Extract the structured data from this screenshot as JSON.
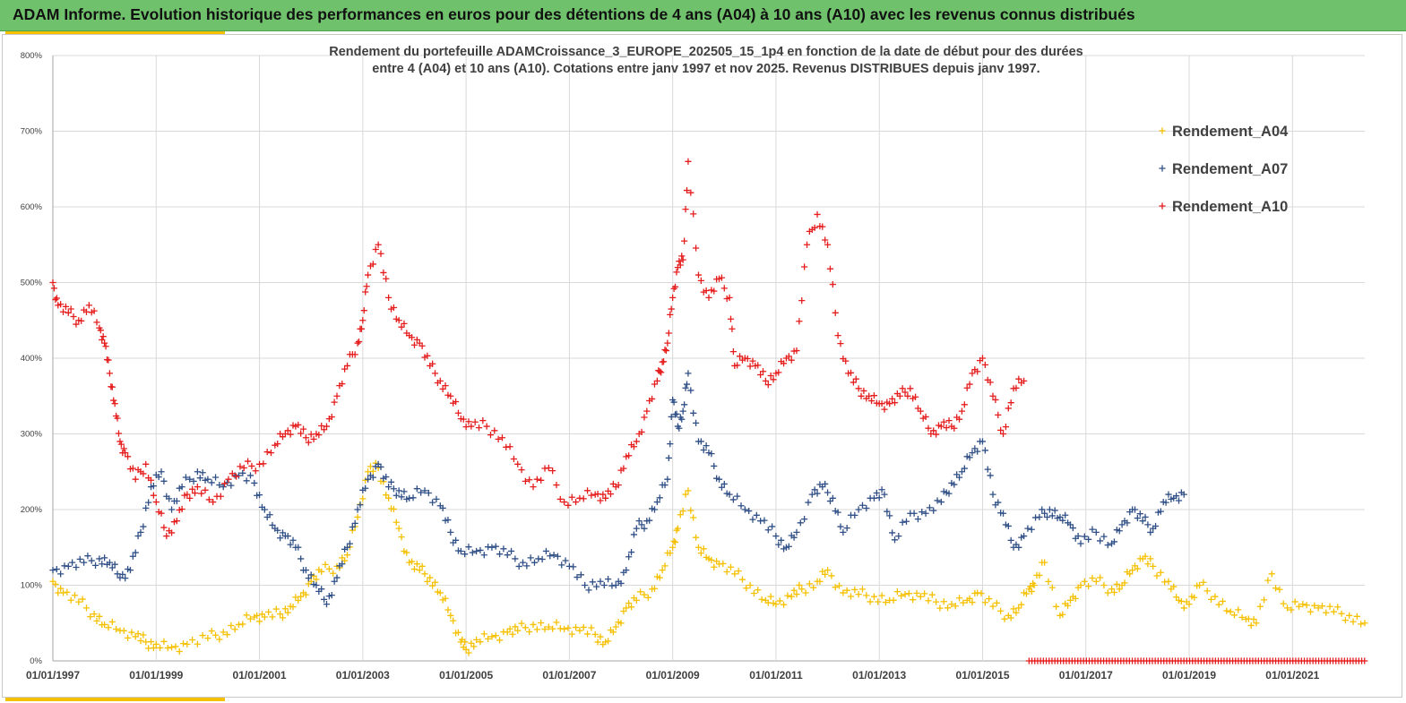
{
  "header": {
    "title": "ADAM Informe. Evolution historique des performances en euros pour des détentions de 4 ans (A04) à 10 ans (A10) avec les revenus connus distribués"
  },
  "colors": {
    "banner": "#6fc26b",
    "accent": "#f5c000",
    "a04": "#f5c000",
    "a07": "#2f4f86",
    "a10": "#e51d1d",
    "grid": "#d9d9d9"
  },
  "chart_data": {
    "type": "scatter",
    "title_lines": [
      "Rendement du portefeuille ADAMCroissance_3_EUROPE_202505_15_1p4  en fonction de la date de début pour des durées",
      "entre 4 (A04) et 10 ans (A10). Cotations entre janv 1997 et nov 2025. Revenus DISTRIBUES depuis janv 1997."
    ],
    "xlabel": "",
    "ylabel": "",
    "xlim": [
      1997.0,
      2022.4
    ],
    "ylim": [
      0,
      800
    ],
    "x_ticks": [
      1997,
      1999,
      2001,
      2003,
      2005,
      2007,
      2009,
      2011,
      2013,
      2015,
      2017,
      2019,
      2021
    ],
    "x_tick_labels": [
      "01/01/1997",
      "01/01/1999",
      "01/01/2001",
      "01/01/2003",
      "01/01/2005",
      "01/01/2007",
      "01/01/2009",
      "01/01/2011",
      "01/01/2013",
      "01/01/2015",
      "01/01/2017",
      "01/01/2019",
      "01/01/2021"
    ],
    "y_ticks": [
      0,
      100,
      200,
      300,
      400,
      500,
      600,
      700,
      800
    ],
    "y_tick_labels": [
      "0%",
      "100%",
      "200%",
      "300%",
      "400%",
      "500%",
      "600%",
      "700%",
      "800%"
    ],
    "legend_position": "top-right",
    "series": [
      {
        "name": "Rendement_A04",
        "color": "#f5c000",
        "x": [
          1997.0,
          1997.2,
          1997.5,
          1997.8,
          1998.0,
          1998.3,
          1998.6,
          1998.8,
          1999.0,
          1999.3,
          1999.6,
          2000.0,
          2000.3,
          2000.6,
          2000.9,
          2001.1,
          2001.4,
          2001.6,
          2001.8,
          2002.0,
          2002.2,
          2002.5,
          2002.7,
          2002.9,
          2003.1,
          2003.3,
          2003.5,
          2003.7,
          2003.9,
          2004.1,
          2004.3,
          2004.5,
          2004.7,
          2004.9,
          2005.0,
          2005.2,
          2005.5,
          2005.8,
          2006.0,
          2006.3,
          2006.6,
          2006.9,
          2007.2,
          2007.5,
          2007.7,
          2007.9,
          2008.1,
          2008.3,
          2008.6,
          2008.8,
          2009.0,
          2009.1,
          2009.3,
          2009.5,
          2009.7,
          2009.9,
          2010.2,
          2010.5,
          2010.8,
          2011.0,
          2011.3,
          2011.5,
          2011.8,
          2012.0,
          2012.3,
          2012.6,
          2012.9,
          2013.2,
          2013.5,
          2013.8,
          2014.1,
          2014.4,
          2014.7,
          2014.9,
          2015.2,
          2015.5,
          2015.7,
          2015.9,
          2016.0,
          2016.2,
          2016.5,
          2016.7,
          2016.9,
          2017.2,
          2017.5,
          2017.7,
          2017.9,
          2018.1,
          2018.3,
          2018.6,
          2018.8,
          2019.0,
          2019.2,
          2019.5,
          2019.8,
          2020.1,
          2020.3,
          2020.6,
          2020.9,
          2021.2,
          2021.5,
          2021.8,
          2022.1,
          2022.4
        ],
        "values": [
          105,
          90,
          78,
          62,
          48,
          40,
          32,
          25,
          22,
          18,
          22,
          30,
          38,
          48,
          58,
          58,
          62,
          72,
          85,
          105,
          118,
          125,
          140,
          190,
          250,
          255,
          215,
          175,
          130,
          120,
          110,
          90,
          60,
          25,
          15,
          28,
          32,
          38,
          40,
          48,
          45,
          42,
          40,
          35,
          25,
          45,
          70,
          80,
          95,
          120,
          150,
          175,
          225,
          150,
          135,
          128,
          115,
          100,
          80,
          75,
          85,
          95,
          105,
          120,
          90,
          88,
          85,
          80,
          88,
          85,
          78,
          75,
          80,
          90,
          72,
          60,
          70,
          95,
          100,
          130,
          60,
          80,
          100,
          105,
          95,
          100,
          120,
          135,
          125,
          105,
          80,
          75,
          100,
          85,
          65,
          55,
          50,
          115,
          70,
          75,
          70,
          65,
          60,
          50
        ]
      },
      {
        "name": "Rendement_A07",
        "color": "#2f4f86",
        "x": [
          1997.0,
          1997.3,
          1997.6,
          1997.9,
          1998.1,
          1998.3,
          1998.5,
          1998.7,
          1998.9,
          1999.1,
          1999.3,
          1999.5,
          1999.8,
          2000.0,
          2000.3,
          2000.6,
          2000.9,
          2001.1,
          2001.3,
          2001.5,
          2001.7,
          2001.9,
          2002.1,
          2002.3,
          2002.5,
          2002.7,
          2002.9,
          2003.1,
          2003.3,
          2003.5,
          2003.7,
          2003.9,
          2004.2,
          2004.5,
          2004.7,
          2004.9,
          2005.2,
          2005.5,
          2005.8,
          2006.1,
          2006.4,
          2006.7,
          2007.0,
          2007.3,
          2007.6,
          2007.9,
          2008.1,
          2008.3,
          2008.5,
          2008.7,
          2008.9,
          2009.0,
          2009.1,
          2009.2,
          2009.3,
          2009.5,
          2009.7,
          2009.9,
          2010.1,
          2010.4,
          2010.7,
          2011.0,
          2011.2,
          2011.4,
          2011.7,
          2011.9,
          2012.1,
          2012.3,
          2012.6,
          2012.9,
          2013.1,
          2013.3,
          2013.6,
          2013.9,
          2014.2,
          2014.4,
          2014.6,
          2014.8,
          2015.0,
          2015.2,
          2015.4,
          2015.6,
          2015.8,
          2016.1,
          2016.3,
          2016.5,
          2016.7,
          2016.9,
          2017.2,
          2017.5,
          2017.7,
          2017.9,
          2018.1,
          2018.3,
          2018.5,
          2018.7,
          2018.9
        ],
        "values": [
          120,
          125,
          130,
          135,
          130,
          110,
          120,
          170,
          230,
          250,
          200,
          230,
          250,
          240,
          230,
          245,
          235,
          200,
          175,
          165,
          150,
          120,
          100,
          75,
          110,
          150,
          200,
          240,
          260,
          230,
          225,
          215,
          225,
          205,
          170,
          145,
          145,
          150,
          140,
          130,
          135,
          140,
          125,
          100,
          105,
          100,
          120,
          175,
          185,
          210,
          240,
          345,
          310,
          330,
          380,
          290,
          275,
          240,
          220,
          200,
          185,
          165,
          150,
          170,
          220,
          230,
          215,
          170,
          200,
          215,
          220,
          160,
          195,
          195,
          210,
          235,
          250,
          275,
          290,
          220,
          195,
          150,
          165,
          190,
          200,
          190,
          180,
          155,
          170,
          155,
          180,
          200,
          185,
          175,
          210,
          215,
          220
        ]
      },
      {
        "name": "Rendement_A10",
        "color": "#e51d1d",
        "x": [
          1997.0,
          1997.1,
          1997.3,
          1997.5,
          1997.7,
          1997.9,
          1998.0,
          1998.1,
          1998.2,
          1998.3,
          1998.4,
          1998.6,
          1998.8,
          1999.0,
          1999.2,
          1999.4,
          1999.6,
          1999.8,
          2000.1,
          2000.4,
          2000.7,
          2001.0,
          2001.3,
          2001.5,
          2001.7,
          2001.9,
          2002.1,
          2002.3,
          2002.5,
          2002.7,
          2002.9,
          2003.0,
          2003.1,
          2003.3,
          2003.5,
          2003.7,
          2003.9,
          2004.1,
          2004.3,
          2004.5,
          2004.7,
          2004.9,
          2005.1,
          2005.4,
          2005.7,
          2006.0,
          2006.3,
          2006.6,
          2006.9,
          2007.2,
          2007.5,
          2007.7,
          2007.9,
          2008.1,
          2008.3,
          2008.5,
          2008.7,
          2008.8,
          2008.9,
          2009.0,
          2009.1,
          2009.2,
          2009.3,
          2009.5,
          2009.7,
          2009.9,
          2010.1,
          2010.2,
          2010.4,
          2010.6,
          2010.8,
          2011.0,
          2011.2,
          2011.4,
          2011.6,
          2011.8,
          2012.0,
          2012.2,
          2012.4,
          2012.6,
          2012.8,
          2013.0,
          2013.2,
          2013.4,
          2013.6,
          2013.8,
          2014.0,
          2014.2,
          2014.4,
          2014.6,
          2014.8,
          2015.0,
          2015.2,
          2015.4,
          2015.6,
          2015.8
        ],
        "values": [
          500,
          470,
          460,
          450,
          470,
          440,
          420,
          380,
          340,
          290,
          275,
          240,
          260,
          210,
          165,
          185,
          220,
          230,
          210,
          240,
          255,
          260,
          285,
          300,
          310,
          295,
          300,
          310,
          350,
          390,
          420,
          450,
          510,
          550,
          480,
          450,
          430,
          420,
          390,
          370,
          350,
          320,
          310,
          310,
          295,
          260,
          230,
          255,
          210,
          215,
          220,
          215,
          230,
          270,
          290,
          330,
          370,
          395,
          420,
          480,
          520,
          530,
          660,
          510,
          480,
          505,
          480,
          390,
          400,
          390,
          370,
          380,
          400,
          410,
          550,
          590,
          550,
          430,
          380,
          360,
          350,
          340,
          340,
          350,
          360,
          330,
          300,
          310,
          310,
          330,
          380,
          400,
          350,
          300,
          360,
          370
        ]
      }
    ],
    "extra_marks": {
      "name": "Rendement_A10",
      "y": 0,
      "x_from": 2015.9,
      "x_to": 2022.4,
      "note": "dense markers along the 0% baseline"
    }
  }
}
